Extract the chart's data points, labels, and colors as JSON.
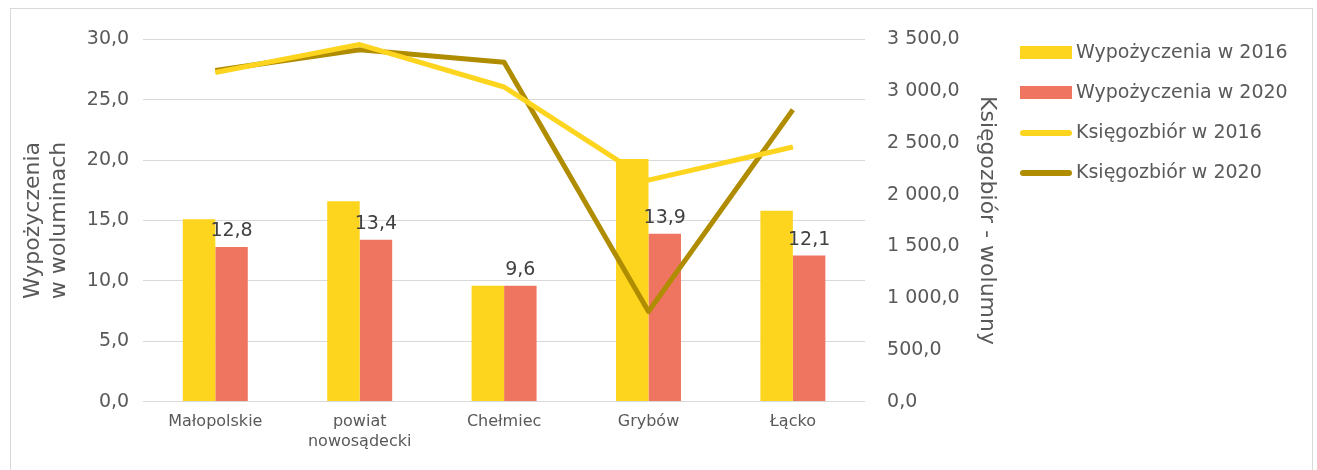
{
  "chart_data": {
    "type": "bar",
    "categories": [
      "Małopolskie",
      "powiat nowosądecki",
      "Chełmiec",
      "Grybów",
      "Łącko"
    ],
    "ylabel": "Wypożyczenia  w woluminach",
    "y2label": "Księgozbiór - wolumny",
    "series": [
      {
        "name": "Wypożyczenia w 2016",
        "color": "#fdd41e",
        "values": [
          15.1,
          16.6,
          9.6,
          20.1,
          15.8
        ]
      },
      {
        "name": "Wypożyczenia w 2020",
        "color": "#ef7560",
        "values": [
          12.8,
          13.4,
          9.6,
          13.9,
          12.1
        ],
        "value_labels": [
          "12,8",
          "13,4",
          "9,6",
          "13,9",
          "12,1"
        ]
      },
      {
        "name": "Księgozbiór w 2016",
        "type": "line",
        "axis": "y2",
        "color": "#fdd41e",
        "values": [
          3180,
          3450,
          3040,
          2140,
          2460
        ]
      },
      {
        "name": "Księgozbiór w 2020",
        "type": "line",
        "axis": "y2",
        "color": "#b08c00",
        "values": [
          3200,
          3400,
          3280,
          870,
          2820
        ]
      }
    ],
    "ylim": [
      0,
      30
    ],
    "yticks": [
      {
        "value": 0,
        "label": "0,0"
      },
      {
        "value": 5,
        "label": "5,0"
      },
      {
        "value": 10,
        "label": "10,0"
      },
      {
        "value": 15,
        "label": "15,0"
      },
      {
        "value": 20,
        "label": "20,0"
      },
      {
        "value": 25,
        "label": "25,0"
      },
      {
        "value": 30,
        "label": "30,0"
      }
    ],
    "y2lim": [
      0,
      3500
    ],
    "y2ticks": [
      {
        "value": 0,
        "label": "0,0"
      },
      {
        "value": 500,
        "label": "500,0"
      },
      {
        "value": 1000,
        "label": "1 000,0"
      },
      {
        "value": 1500,
        "label": "1 500,0"
      },
      {
        "value": 2000,
        "label": "2 000,0"
      },
      {
        "value": 2500,
        "label": "2 500,0"
      },
      {
        "value": 3000,
        "label": "3 000,0"
      },
      {
        "value": 3500,
        "label": "3 500,0"
      }
    ],
    "grid": "y",
    "legend": "right"
  }
}
